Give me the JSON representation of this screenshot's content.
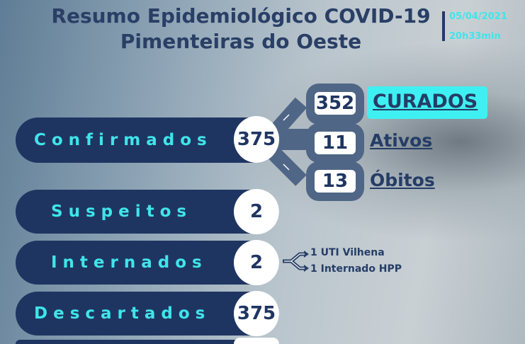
{
  "header": {
    "title_line1": "Resumo Epidemiológico COVID-19",
    "title_line2": "Pimenteiras do Oeste",
    "date": "05/04/2021",
    "time": "20h33min"
  },
  "rows": [
    {
      "label": "Confirmados",
      "value": "375"
    },
    {
      "label": "Suspeitos",
      "value": "2"
    },
    {
      "label": "Internados",
      "value": "2"
    },
    {
      "label": "Descartados",
      "value": "375"
    }
  ],
  "breakdown": [
    {
      "value": "352",
      "label": "CURADOS"
    },
    {
      "value": "11",
      "label": "Ativos"
    },
    {
      "value": "13",
      "label": "Óbitos"
    }
  ],
  "internados_detail": [
    "1 UTI Vilhena",
    "1 Internado HPP"
  ],
  "colors": {
    "navy": "#1f3561",
    "cyan": "#3fe5ea",
    "slate": "#4f6686"
  }
}
